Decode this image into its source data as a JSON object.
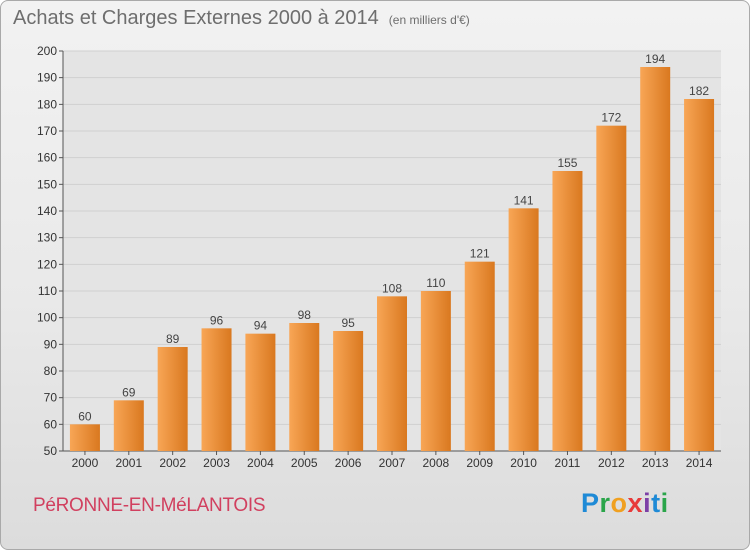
{
  "title": "Achats et Charges Externes 2000 à 2014",
  "unit": "(en milliers d'€)",
  "commune": "PéRONNE-EN-MéLANTOIS",
  "logo": {
    "letters": [
      "P",
      "r",
      "o",
      "x",
      "i",
      "t",
      "i"
    ],
    "colors": [
      "#1e8ad6",
      "#2aa54a",
      "#f0a020",
      "#e83a3a",
      "#7c3fa6",
      "#1e8ad6",
      "#2aa54a"
    ]
  },
  "colors": {
    "bar_light": "#f8a656",
    "bar_dark": "#d9781f",
    "grid": "#cfcfcf",
    "plot_bg": "#e4e4e4"
  },
  "chart_data": {
    "type": "bar",
    "categories": [
      "2000",
      "2001",
      "2002",
      "2003",
      "2004",
      "2005",
      "2006",
      "2007",
      "2008",
      "2009",
      "2010",
      "2011",
      "2012",
      "2013",
      "2014"
    ],
    "values": [
      60,
      69,
      89,
      96,
      94,
      98,
      95,
      108,
      110,
      121,
      141,
      155,
      172,
      194,
      182
    ],
    "ylim": [
      50,
      200
    ],
    "yticks": [
      50,
      60,
      70,
      80,
      90,
      100,
      110,
      120,
      130,
      140,
      150,
      160,
      170,
      180,
      190,
      200
    ],
    "grid": true,
    "title": "Achats et Charges Externes 2000 à 2014",
    "xlabel": "",
    "ylabel": ""
  }
}
